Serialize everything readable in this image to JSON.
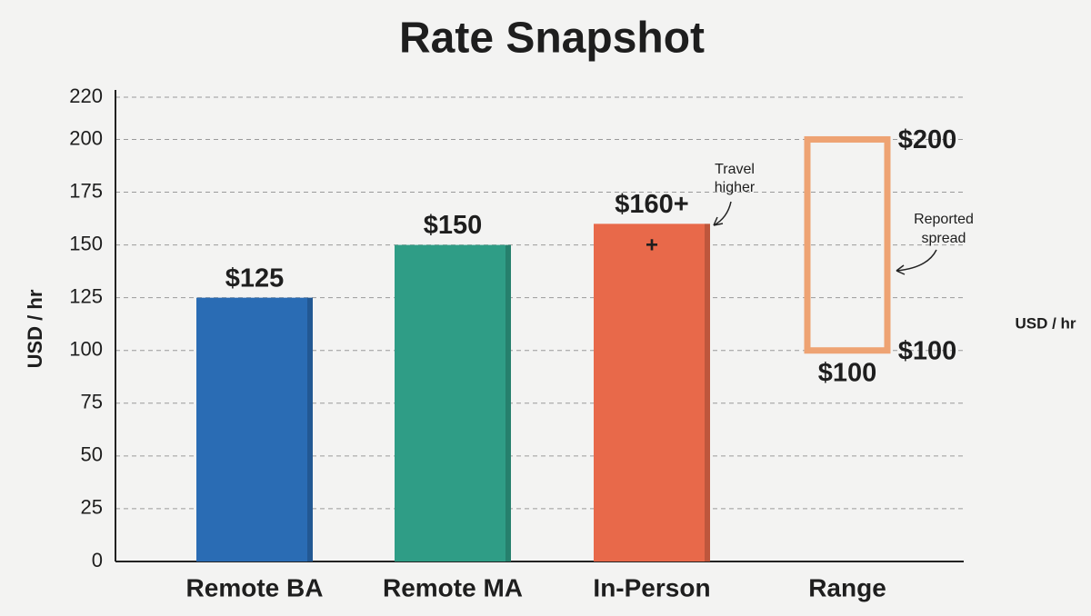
{
  "chart_data": {
    "type": "bar",
    "title": "Rate Snapshot",
    "ylabel": "USD / hr",
    "categories": [
      "Remote BA",
      "Remote MA",
      "In-Person",
      "Range"
    ],
    "values": [
      125,
      150,
      160,
      null
    ],
    "value_labels": [
      "$125",
      "$150",
      "$160+",
      null
    ],
    "colors": [
      "#2a6cb4",
      "#2f9d86",
      "#e8694a",
      null
    ],
    "range": {
      "low": 100,
      "high": 200,
      "high_label": "$200",
      "low_label": "$100",
      "low_label_below": "$100",
      "color": "#eea373"
    },
    "ylim": [
      0,
      220
    ],
    "yticks": [
      0,
      25,
      50,
      75,
      100,
      125,
      150,
      175,
      200,
      220
    ],
    "grid": true,
    "annotations": {
      "plus": "+",
      "travel": [
        "Travel",
        "higher"
      ],
      "spread": [
        "Reported",
        "spread"
      ],
      "right_unit": "USD / hr"
    }
  }
}
